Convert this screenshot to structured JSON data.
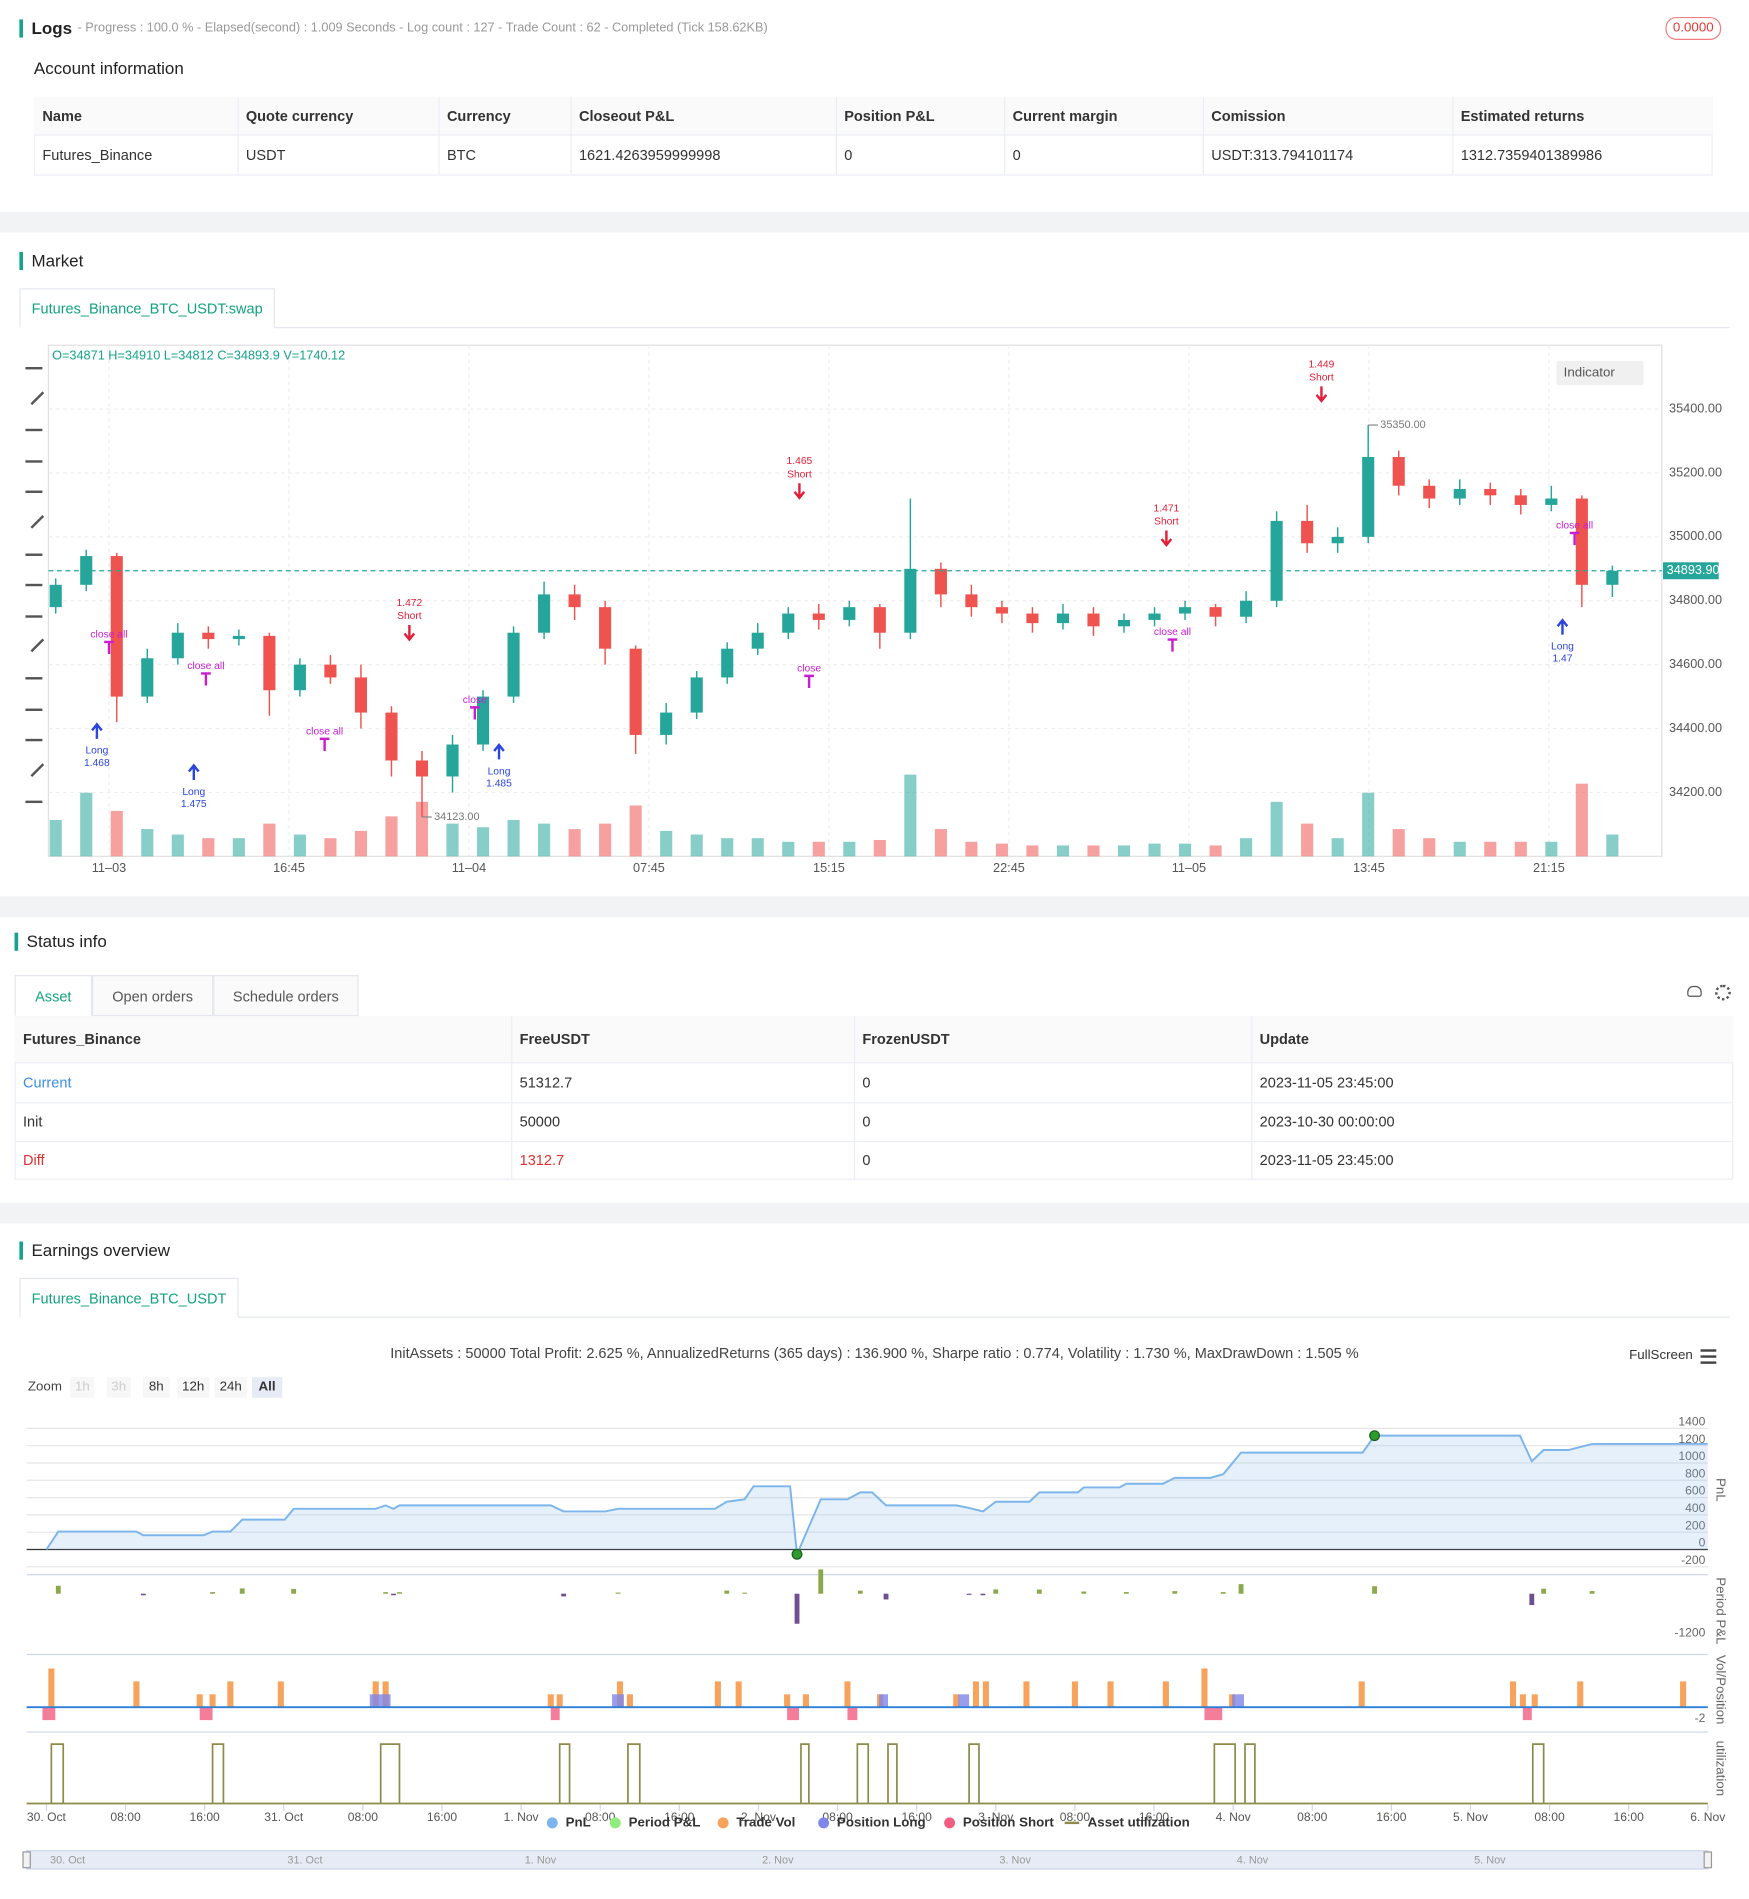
{
  "logs": {
    "title": "Logs",
    "status": "- Progress : 100.0 % - Elapsed(second) : 1.009  Seconds - Log count : 127 - Trade Count : 62 - Completed (Tick 158.62KB)",
    "badge": "0.0000"
  },
  "account": {
    "title": "Account information",
    "columns": [
      "Name",
      "Quote currency",
      "Currency",
      "Closeout P&L",
      "Position P&L",
      "Current margin",
      "Comission",
      "Estimated returns"
    ],
    "rows": [
      [
        "Futures_Binance",
        "USDT",
        "BTC",
        "1621.4263959999998",
        "0",
        "0",
        "USDT:313.794101174",
        "1312.7359401389986"
      ]
    ]
  },
  "market": {
    "title": "Market",
    "tab": "Futures_Binance_BTC_USDT:swap",
    "indicator": "Indicator"
  },
  "status": {
    "title": "Status info",
    "tabs": [
      "Asset",
      "Open orders",
      "Schedule orders"
    ],
    "columns": [
      "Futures_Binance",
      "FreeUSDT",
      "FrozenUSDT",
      "Update"
    ],
    "rows": [
      [
        "Current",
        "51312.7",
        "0",
        "2023-11-05 23:45:00"
      ],
      [
        "Init",
        "50000",
        "0",
        "2023-10-30 00:00:00"
      ],
      [
        "Diff",
        "1312.7",
        "0",
        "2023-11-05 23:45:00"
      ]
    ]
  },
  "earnings": {
    "title": "Earnings overview",
    "tab": "Futures_Binance_BTC_USDT",
    "fullscreen": "FullScreen",
    "zoom": {
      "label": "Zoom",
      "options": [
        "1h",
        "3h",
        "8h",
        "12h",
        "24h",
        "All"
      ]
    },
    "navigator": [
      "30. Oct",
      "31. Oct",
      "1. Nov",
      "2. Nov",
      "3. Nov",
      "4. Nov",
      "5. Nov"
    ]
  },
  "chart_data": [
    {
      "type": "candlestick",
      "ohlc_label": "O=34871 H=34910 L=34812 C=34893.9 V=1740.12",
      "x_labels": [
        "11–03",
        "16:45",
        "11–04",
        "07:45",
        "15:15",
        "22:45",
        "11–05",
        "13:45",
        "21:15"
      ],
      "open": [
        34780,
        34850,
        34940,
        34500,
        34620,
        34700,
        34680,
        34690,
        34520,
        34600,
        34560,
        34450,
        34300,
        34250,
        34350,
        34500,
        34700,
        34820,
        34780,
        34650,
        34380,
        34450,
        34560,
        34650,
        34700,
        34760,
        34740,
        34780,
        34700,
        34900,
        34820,
        34780,
        34760,
        34730,
        34760,
        34720,
        34740,
        34760,
        34780,
        34750,
        34800,
        35050,
        34980,
        35000,
        35250,
        35160,
        35120,
        35150,
        35130,
        35100,
        35120,
        34850
      ],
      "high": [
        34870,
        34960,
        34950,
        34650,
        34730,
        34720,
        34710,
        34700,
        34620,
        34630,
        34600,
        34470,
        34330,
        34380,
        34520,
        34720,
        34860,
        34850,
        34800,
        34660,
        34480,
        34580,
        34670,
        34730,
        34780,
        34790,
        34800,
        34790,
        35120,
        34920,
        34850,
        34800,
        34780,
        34790,
        34780,
        34760,
        34780,
        34800,
        34790,
        34830,
        35080,
        35100,
        35030,
        35350,
        35270,
        35180,
        35180,
        35170,
        35150,
        35160,
        35130,
        34910
      ],
      "low": [
        34760,
        34830,
        34420,
        34480,
        34600,
        34650,
        34660,
        34440,
        34500,
        34540,
        34400,
        34250,
        34123,
        34200,
        34330,
        34480,
        34680,
        34740,
        34600,
        34320,
        34350,
        34430,
        34540,
        34630,
        34680,
        34710,
        34720,
        34650,
        34680,
        34780,
        34750,
        34730,
        34700,
        34710,
        34690,
        34700,
        34720,
        34740,
        34720,
        34730,
        34780,
        34950,
        34950,
        34980,
        35130,
        35090,
        35100,
        35100,
        35070,
        35080,
        34780,
        34812
      ],
      "close": [
        34850,
        34940,
        34500,
        34620,
        34700,
        34680,
        34690,
        34520,
        34600,
        34560,
        34450,
        34300,
        34250,
        34350,
        34500,
        34700,
        34820,
        34780,
        34650,
        34380,
        34450,
        34560,
        34650,
        34700,
        34760,
        34740,
        34780,
        34700,
        34900,
        34820,
        34780,
        34760,
        34730,
        34760,
        34720,
        34740,
        34760,
        34780,
        34750,
        34800,
        35050,
        34980,
        35000,
        35250,
        35160,
        35120,
        35150,
        35130,
        35100,
        35120,
        34850,
        34893.9
      ],
      "volume": [
        20,
        35,
        25,
        15,
        12,
        10,
        10,
        18,
        12,
        10,
        14,
        22,
        30,
        18,
        16,
        20,
        18,
        15,
        18,
        28,
        14,
        12,
        10,
        10,
        8,
        8,
        8,
        9,
        45,
        15,
        8,
        7,
        6,
        6,
        6,
        6,
        7,
        7,
        6,
        10,
        30,
        18,
        10,
        35,
        15,
        10,
        8,
        8,
        8,
        8,
        40,
        12
      ],
      "ylim": [
        34000,
        35600
      ],
      "yticks": [
        {
          "value": 34200,
          "label": "34200.00"
        },
        {
          "value": 34400,
          "label": "34400.00"
        },
        {
          "value": 34600,
          "label": "34600.00"
        },
        {
          "value": 34800,
          "label": "34800.00"
        },
        {
          "value": 35000,
          "label": "35000.00"
        },
        {
          "value": 35200,
          "label": "35200.00"
        },
        {
          "value": 35400,
          "label": "35400.00"
        }
      ],
      "last_price": {
        "value": 34893.9,
        "label": "34893.90"
      },
      "markers": [
        {
          "value": 35350,
          "label": "35350.00"
        },
        {
          "value": 34123,
          "label": "34123.00"
        }
      ],
      "signals": [
        {
          "label": "Long",
          "amount": 1.468
        },
        {
          "label": "Long",
          "amount": 1.475
        },
        {
          "label": "Short",
          "amount": 1.472
        },
        {
          "label": "Long",
          "amount": 1.485
        },
        {
          "label": "Short",
          "amount": 1.465
        },
        {
          "label": "Short",
          "amount": 1.471
        },
        {
          "label": "Short",
          "amount": 1.449
        },
        {
          "label": "Long",
          "amount": 1.47
        }
      ],
      "close_labels": [
        "close all",
        "close all",
        "close all",
        "close",
        "close",
        "close all",
        "close all"
      ],
      "up_color": "#26a69a",
      "down_color": "#ef5350",
      "grid": true
    },
    {
      "type": "line",
      "title": "InitAssets : 50000 Total Profit: 2.625 %, AnnualizedReturns (365 days) : 136.900 %, Sharpe ratio : 0.774, Volatility : 1.730 %, MaxDrawDown : 1.505 %",
      "xlim": [
        -2,
        168
      ],
      "xticks": [
        {
          "value": 0,
          "label": "30. Oct"
        },
        {
          "value": 8,
          "label": "08:00"
        },
        {
          "value": 16,
          "label": "16:00"
        },
        {
          "value": 24,
          "label": "31. Oct"
        },
        {
          "value": 32,
          "label": "08:00"
        },
        {
          "value": 40,
          "label": "16:00"
        },
        {
          "value": 48,
          "label": "1. Nov"
        },
        {
          "value": 56,
          "label": "08:00"
        },
        {
          "value": 64,
          "label": "16:00"
        },
        {
          "value": 72,
          "label": "2. Nov"
        },
        {
          "value": 80,
          "label": "08:00"
        },
        {
          "value": 88,
          "label": "16:00"
        },
        {
          "value": 96,
          "label": "3. Nov"
        },
        {
          "value": 104,
          "label": "08:00"
        },
        {
          "value": 112,
          "label": "16:00"
        },
        {
          "value": 120,
          "label": "4. Nov"
        },
        {
          "value": 128,
          "label": "08:00"
        },
        {
          "value": 136,
          "label": "16:00"
        },
        {
          "value": 144,
          "label": "5. Nov"
        },
        {
          "value": 152,
          "label": "08:00"
        },
        {
          "value": 160,
          "label": "16:00"
        },
        {
          "value": 168,
          "label": "6. Nov"
        }
      ],
      "panels": [
        {
          "label": "PnL",
          "ylim": [
            -220,
            1600
          ],
          "yticks": [
            1400,
            1200,
            1000,
            800,
            600,
            400,
            200,
            0,
            -200
          ]
        },
        {
          "label": "Period P&L",
          "ylim": [
            -1400,
            500
          ],
          "yticks": [
            -1200
          ]
        },
        {
          "label": "Vol/Position",
          "ylim": [
            -2,
            6
          ],
          "yticks": [
            -2
          ]
        },
        {
          "label": "utilization",
          "ylim": [
            0,
            120
          ],
          "yticks": []
        }
      ],
      "series": [
        {
          "name": "PnL",
          "color": "#7cb5ec",
          "panel": 0,
          "x": [
            0,
            1.2,
            9.1,
            9.8,
            15.9,
            16.8,
            18.6,
            19.8,
            24.1,
            25,
            33.3,
            34.3,
            35.1,
            35.7,
            51,
            52.3,
            56.5,
            57.8,
            67.6,
            68.8,
            70.6,
            71.5,
            75.2,
            75.9,
            78.3,
            81,
            82.3,
            83.5,
            84.9,
            92,
            93.3,
            94.7,
            96,
            99.4,
            100.4,
            104.3,
            104.9,
            108.5,
            109.2,
            112.9,
            114.1,
            117.7,
            119,
            120.8,
            133.1,
            134.3,
            149,
            150.2,
            151.4,
            153.9,
            156.3,
            168
          ],
          "values": [
            0,
            207,
            207,
            165,
            165,
            207,
            207,
            345,
            345,
            470,
            470,
            510,
            470,
            510,
            510,
            440,
            440,
            470,
            470,
            552,
            580,
            730,
            730,
            -55,
            580,
            580,
            660,
            660,
            510,
            510,
            480,
            440,
            552,
            552,
            660,
            660,
            717,
            717,
            760,
            760,
            828,
            828,
            870,
            1120,
            1120,
            1316,
            1316,
            1020,
            1150,
            1150,
            1220,
            1220
          ]
        },
        {
          "name": "Period P&L",
          "color": "#90ed7d",
          "bar_color": "#8ba84a",
          "negative_color": "#6f4f8f",
          "panel": 1,
          "x": [
            1.2,
            9.8,
            16.8,
            19.8,
            25,
            34.3,
            35.1,
            35.7,
            52.3,
            57.8,
            68.8,
            70.6,
            75.9,
            78.3,
            82.3,
            84.9,
            93.3,
            94.7,
            96,
            100.4,
            104.9,
            109.2,
            114.1,
            119,
            120.8,
            134.3,
            150.2,
            151.4,
            156.3
          ],
          "values": [
            207,
            -42,
            42,
            138,
            125,
            40,
            -40,
            40,
            -70,
            30,
            82,
            28,
            -785,
            635,
            80,
            -150,
            -30,
            -40,
            112,
            108,
            57,
            43,
            68,
            42,
            250,
            196,
            -296,
            130,
            70
          ]
        },
        {
          "name": "Trade Vol",
          "color": "#f7a35c",
          "panel": 2,
          "x": [
            0.5,
            9.1,
            15.5,
            16.8,
            18.6,
            23.7,
            33.3,
            34.3,
            51,
            51.9,
            58,
            59,
            67.9,
            70,
            74.9,
            76.8,
            81,
            84.3,
            92,
            94,
            95,
            99.1,
            104,
            107.6,
            113.2,
            117.1,
            119.9,
            133,
            148.3,
            149.3,
            150.5,
            155.1,
            165.5
          ],
          "values": [
            4.41,
            2.94,
            1.47,
            1.47,
            2.94,
            2.94,
            2.94,
            2.94,
            1.47,
            1.47,
            2.94,
            1.47,
            2.94,
            2.94,
            1.47,
            1.47,
            2.94,
            1.47,
            1.47,
            2.94,
            2.94,
            2.94,
            2.94,
            2.94,
            2.94,
            4.41,
            1.47,
            2.94,
            2.94,
            1.47,
            1.47,
            2.94,
            2.94
          ]
        },
        {
          "name": "Position Long",
          "color": "#8085e9",
          "panel": 2,
          "x": [
            32.7,
            57.2,
            84.2,
            92.2,
            119.9
          ],
          "x2": [
            34.8,
            58.4,
            85.1,
            93.3,
            121.1
          ],
          "values": [
            1.47,
            1.47,
            1.47,
            1.47,
            1.47
          ]
        },
        {
          "name": "Position Short",
          "color": "#f15c80",
          "panel": 2,
          "x": [
            -0.4,
            15.5,
            51,
            74.9,
            81,
            117.1,
            149.3
          ],
          "x2": [
            0.9,
            16.8,
            51.9,
            76.1,
            82,
            118.9,
            150.2
          ],
          "values": [
            -1.47,
            -1.47,
            -1.47,
            -1.47,
            -1.47,
            -1.47,
            -1.47
          ]
        },
        {
          "name": "Asset utilization",
          "color": "#8d8a4a",
          "panel": 3,
          "x": [
            0.5,
            16.8,
            33.8,
            51.9,
            58.8,
            76.3,
            82,
            85.1,
            93.3,
            118.1,
            121.2,
            150.3
          ],
          "x2": [
            1.7,
            17.9,
            35.7,
            52.9,
            60,
            77.1,
            83.1,
            86,
            94.3,
            120.2,
            122.2,
            151.4
          ],
          "values": [
            100,
            100,
            100,
            100,
            100,
            100,
            100,
            100,
            100,
            100,
            100,
            100
          ]
        }
      ]
    }
  ]
}
